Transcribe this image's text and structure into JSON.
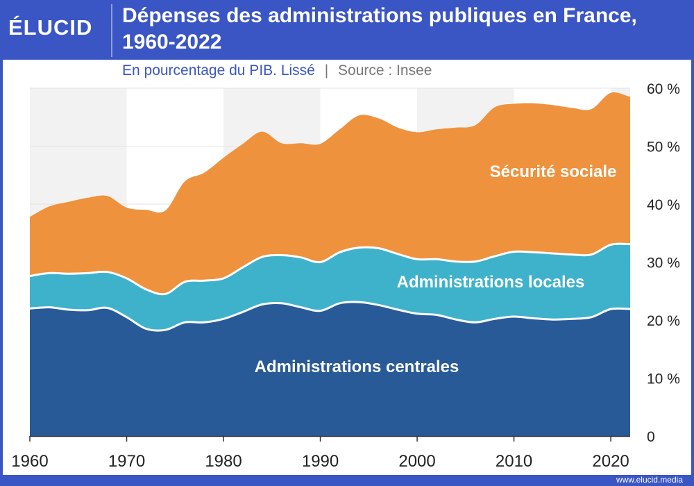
{
  "header": {
    "logo": "ÉLUCID",
    "title_line1": "Dépenses des administrations publiques en France,",
    "title_line2": "1960-2022",
    "subtitle": "En pourcentage du PIB. Lissé",
    "subtitle_sep": "|",
    "source": "Source : Insee"
  },
  "footer": {
    "url": "www.elucid.media"
  },
  "colors": {
    "centrales": "#285a98",
    "locales": "#3fb2cb",
    "securite": "#ef923e",
    "frame": "#3a55c4",
    "band": "#f2f2f2"
  },
  "chart_data": {
    "type": "area",
    "stacked": true,
    "x": [
      1960,
      1962,
      1964,
      1966,
      1968,
      1970,
      1972,
      1974,
      1976,
      1978,
      1980,
      1982,
      1984,
      1986,
      1988,
      1990,
      1992,
      1994,
      1996,
      1998,
      2000,
      2002,
      2004,
      2006,
      2008,
      2010,
      2012,
      2014,
      2016,
      2018,
      2020,
      2022
    ],
    "series": [
      {
        "name": "Administrations centrales",
        "values": [
          22,
          22.2,
          21.8,
          21.7,
          22.1,
          20.5,
          18.5,
          18.3,
          19.6,
          19.6,
          20.2,
          21.4,
          22.7,
          22.9,
          22.2,
          21.6,
          22.9,
          23.1,
          22.6,
          21.8,
          21.1,
          20.9,
          20.1,
          19.6,
          20.2,
          20.6,
          20.3,
          20.1,
          20.2,
          20.5,
          21.9,
          21.9
        ]
      },
      {
        "name": "Administrations locales",
        "values": [
          5.6,
          5.9,
          6.2,
          6.4,
          6.2,
          6.7,
          6.8,
          6.2,
          7.0,
          7.2,
          7.0,
          7.7,
          8.2,
          8.3,
          8.6,
          8.4,
          8.8,
          9.4,
          9.8,
          9.6,
          9.4,
          9.6,
          10.0,
          10.5,
          10.8,
          11.2,
          11.4,
          11.4,
          11.1,
          10.8,
          11.1,
          11.2
        ]
      },
      {
        "name": "Sécurité sociale",
        "values": [
          10.2,
          11.5,
          12.4,
          13.0,
          13.1,
          12.2,
          13.7,
          14.4,
          17.3,
          18.6,
          20.8,
          21.3,
          21.6,
          19.3,
          19.7,
          20.4,
          21.2,
          22.8,
          22.4,
          21.8,
          21.9,
          22.4,
          23.1,
          23.5,
          25.7,
          25.5,
          25.7,
          25.6,
          25.3,
          25.1,
          26.2,
          25.4
        ]
      }
    ],
    "series_labels": [
      "Administrations centrales",
      "Administrations locales",
      "Sécurité sociale"
    ],
    "y_ticks": [
      "0",
      "10 %",
      "20 %",
      "30 %",
      "40 %",
      "50 %",
      "60 %"
    ],
    "x_ticks": [
      "1960",
      "1970",
      "1980",
      "1990",
      "2000",
      "2010",
      "2020"
    ],
    "ylim": [
      0,
      60
    ],
    "xlim": [
      1960,
      2022
    ],
    "grid": true
  }
}
